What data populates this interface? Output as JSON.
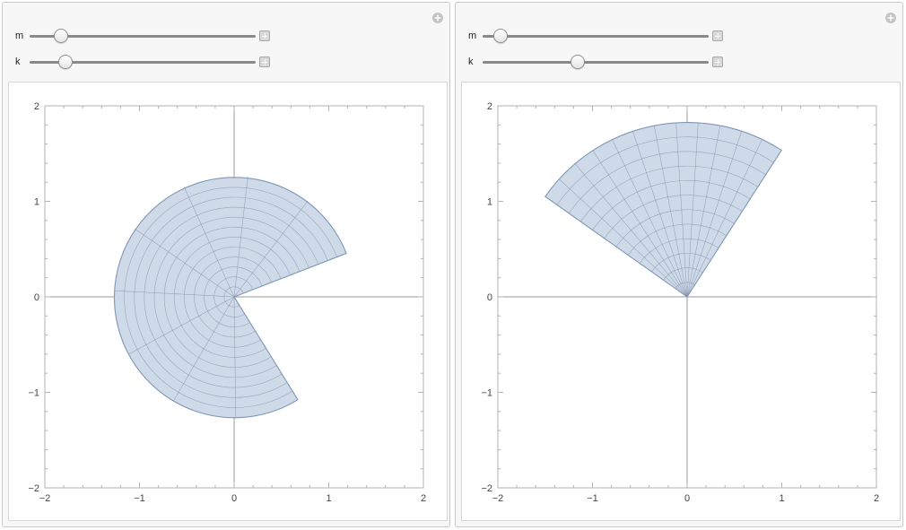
{
  "colors": {
    "region_fill": "#cfdae9",
    "region_stroke": "#7f96b8",
    "mesh": "#7b8aa3",
    "axis": "#999999",
    "frame": "#b3b3b3"
  },
  "panels": [
    {
      "add_icon": "add-circle-icon",
      "controls": [
        {
          "label": "m",
          "value": 0.14
        },
        {
          "label": "k",
          "value": 0.16
        }
      ],
      "chart_data": {
        "type": "polar-region",
        "x_ticks": [
          "−2",
          "−1",
          "0",
          "1",
          "2"
        ],
        "y_ticks": [
          "2",
          "1",
          "0",
          "−1",
          "−2"
        ],
        "xlim": [
          -2,
          2
        ],
        "ylim": [
          -2,
          2
        ],
        "region": {
          "r_max": 1.27,
          "theta_start_deg": 21,
          "theta_end_deg": 302,
          "mesh_rings": 12,
          "mesh_spokes": 9
        }
      }
    },
    {
      "add_icon": "add-circle-icon",
      "controls": [
        {
          "label": "m",
          "value": 0.08
        },
        {
          "label": "k",
          "value": 0.42
        }
      ],
      "chart_data": {
        "type": "polar-region",
        "x_ticks": [
          "−2",
          "−1",
          "0",
          "1",
          "2"
        ],
        "y_ticks": [
          "2",
          "1",
          "0",
          "−1",
          "−2"
        ],
        "xlim": [
          -2,
          2
        ],
        "ylim": [
          -2,
          2
        ],
        "region": {
          "r_max": 1.83,
          "theta_start_deg": 57,
          "theta_end_deg": 145,
          "mesh_rings": 12,
          "mesh_spokes": 12
        }
      }
    }
  ]
}
